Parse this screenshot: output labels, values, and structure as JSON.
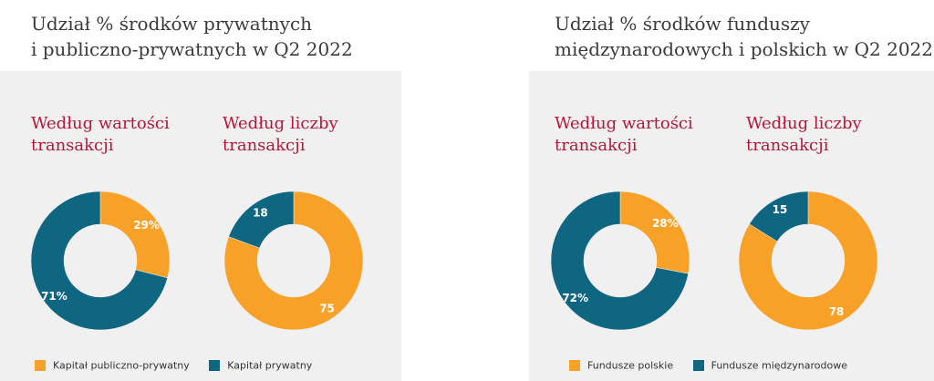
{
  "colors": {
    "orange": "#f7a128",
    "teal": "#0f6680",
    "accent": "#b5163a"
  },
  "panels": [
    {
      "title_line1": "Udział % środków prywatnych",
      "title_line2": "i publiczno-prywatnych w Q2 2022",
      "sub1": "Według wartości transakcji",
      "sub2": "Według liczby transakcji",
      "legend": [
        "Kapitał publiczno-prywatny",
        "Kapitał prywatny"
      ]
    },
    {
      "title_line1": "Udział % środków funduszy",
      "title_line2": "międzynarodowych i polskich w Q2 2022",
      "sub1": "Według wartości transakcji",
      "sub2": "Według liczby transakcji",
      "legend": [
        "Fundusze polskie",
        "Fundusze międzynarodowe"
      ]
    }
  ],
  "chart_data": [
    {
      "type": "pie",
      "title": "Według wartości transakcji",
      "categories": [
        "Kapitał publiczno-prywatny",
        "Kapitał prywatny"
      ],
      "values": [
        29,
        71
      ],
      "labels": [
        "29%",
        "71%"
      ],
      "colors": [
        "#f7a128",
        "#0f6680"
      ]
    },
    {
      "type": "pie",
      "title": "Według liczby transakcji",
      "categories": [
        "Kapitał publiczno-prywatny",
        "Kapitał prywatny"
      ],
      "values": [
        75,
        18
      ],
      "labels": [
        "75",
        "18"
      ],
      "colors": [
        "#f7a128",
        "#0f6680"
      ]
    },
    {
      "type": "pie",
      "title": "Według wartości transakcji",
      "categories": [
        "Fundusze polskie",
        "Fundusze międzynarodowe"
      ],
      "values": [
        28,
        72
      ],
      "labels": [
        "28%",
        "72%"
      ],
      "colors": [
        "#f7a128",
        "#0f6680"
      ]
    },
    {
      "type": "pie",
      "title": "Według liczby transakcji",
      "categories": [
        "Fundusze polskie",
        "Fundusze międzynarodowe"
      ],
      "values": [
        78,
        15
      ],
      "labels": [
        "78",
        "15"
      ],
      "colors": [
        "#f7a128",
        "#0f6680"
      ]
    }
  ]
}
